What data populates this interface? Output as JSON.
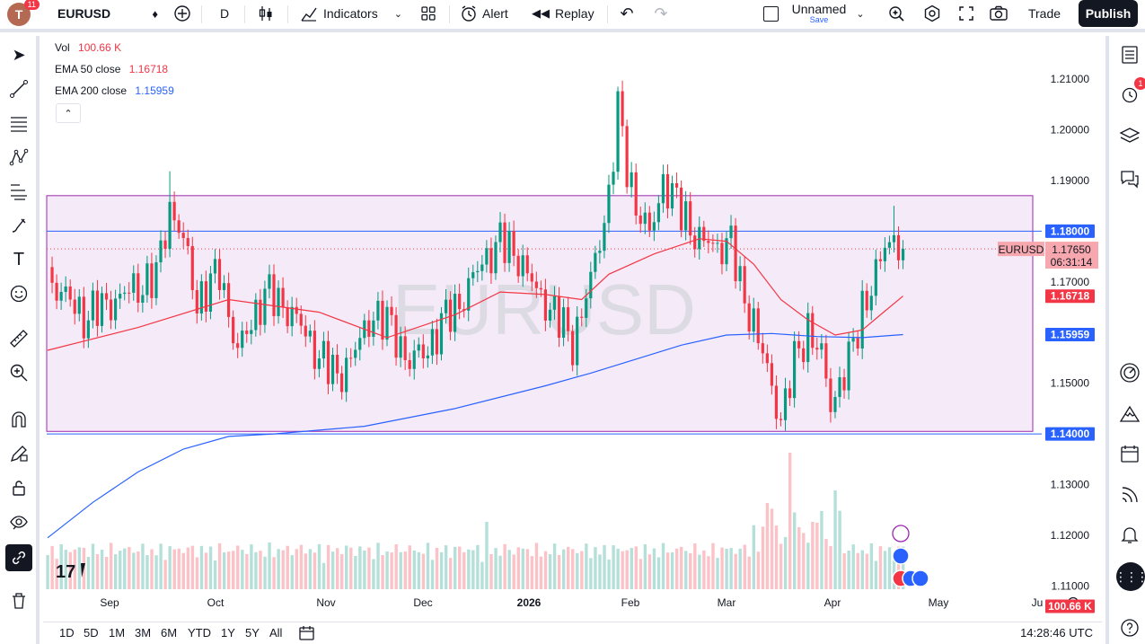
{
  "topbar": {
    "avatar_letter": "T",
    "avatar_badge": "11",
    "symbol": "EURUSD",
    "interval": "D",
    "indicators_label": "Indicators",
    "alert_label": "Alert",
    "replay_label": "Replay",
    "layout_name": "Unnamed",
    "save_label": "Save",
    "trade_label": "Trade",
    "publish_label": "Publish"
  },
  "legend": {
    "vol_label": "Vol",
    "vol_value": "100.66 K",
    "ema50_label": "EMA 50 close",
    "ema50_value": "1.16718",
    "ema200_label": "EMA 200 close",
    "ema200_value": "1.15959"
  },
  "colors": {
    "up": "#089981",
    "down": "#f23645",
    "ema50": "#f23645",
    "ema200": "#2962ff",
    "rect_border": "#9c27b0",
    "rect_fill": "#f3e5f5",
    "hline": "#2962ff",
    "watermark": "#d1d4dc"
  },
  "watermark": "EURUSD",
  "price_axis": {
    "ticks": [
      "1.21000",
      "1.20000",
      "1.19000",
      "1.17000",
      "1.15000",
      "1.13000",
      "1.12000",
      "1.11000"
    ],
    "labels": {
      "hline_upper": "1.18000",
      "hline_lower": "1.14000",
      "symbol": "EURUSD",
      "last_price": "1.17650",
      "countdown": "06:31:14",
      "ema50": "1.16718",
      "ema200": "1.15959",
      "volume": "100.66 K"
    }
  },
  "time_axis": {
    "labels": [
      "Sep",
      "Oct",
      "Nov",
      "Dec",
      "2026",
      "Feb",
      "Mar",
      "Apr",
      "May",
      "Ju"
    ]
  },
  "bottombar": {
    "ranges": [
      "1D",
      "5D",
      "1M",
      "3M",
      "6M",
      "YTD",
      "1Y",
      "5Y",
      "All"
    ],
    "clock": "14:28:46 UTC"
  },
  "right_toolbar": {
    "alerts_badge": "1"
  },
  "chart_data": {
    "type": "candlestick",
    "symbol": "EURUSD",
    "interval": "D",
    "ylim": [
      1.108,
      1.213
    ],
    "hlines": [
      1.18,
      1.14
    ],
    "rectangle": {
      "top": 1.187,
      "bottom": 1.1405
    },
    "last": {
      "price": 1.1765
    },
    "anchors": [
      [
        0,
        1.171
      ],
      [
        8,
        1.163
      ],
      [
        18,
        1.168
      ],
      [
        24,
        1.171
      ],
      [
        27,
        1.185
      ],
      [
        30,
        1.178
      ],
      [
        33,
        1.166
      ],
      [
        38,
        1.172
      ],
      [
        42,
        1.156
      ],
      [
        48,
        1.168
      ],
      [
        54,
        1.164
      ],
      [
        58,
        1.158
      ],
      [
        64,
        1.151
      ],
      [
        69,
        1.158
      ],
      [
        72,
        1.164
      ],
      [
        76,
        1.161
      ],
      [
        80,
        1.154
      ],
      [
        84,
        1.157
      ],
      [
        88,
        1.163
      ],
      [
        92,
        1.167
      ],
      [
        96,
        1.174
      ],
      [
        100,
        1.178
      ],
      [
        104,
        1.175
      ],
      [
        108,
        1.168
      ],
      [
        112,
        1.164
      ],
      [
        116,
        1.158
      ],
      [
        120,
        1.17
      ],
      [
        124,
        1.187
      ],
      [
        126,
        1.204
      ],
      [
        128,
        1.193
      ],
      [
        130,
        1.185
      ],
      [
        133,
        1.179
      ],
      [
        136,
        1.19
      ],
      [
        140,
        1.184
      ],
      [
        144,
        1.178
      ],
      [
        148,
        1.177
      ],
      [
        151,
        1.178
      ],
      [
        153,
        1.169
      ],
      [
        156,
        1.162
      ],
      [
        160,
        1.149
      ],
      [
        162,
        1.143
      ],
      [
        165,
        1.154
      ],
      [
        168,
        1.161
      ],
      [
        171,
        1.155
      ],
      [
        173,
        1.146
      ],
      [
        176,
        1.152
      ],
      [
        178,
        1.157
      ],
      [
        180,
        1.165
      ],
      [
        183,
        1.171
      ],
      [
        185,
        1.177
      ],
      [
        187,
        1.179
      ],
      [
        189,
        1.1765
      ]
    ],
    "ema50_points": [
      [
        0,
        1.1565
      ],
      [
        20,
        1.161
      ],
      [
        40,
        1.1665
      ],
      [
        60,
        1.164
      ],
      [
        75,
        1.159
      ],
      [
        90,
        1.1635
      ],
      [
        100,
        1.168
      ],
      [
        110,
        1.1675
      ],
      [
        118,
        1.1665
      ],
      [
        124,
        1.1715
      ],
      [
        134,
        1.1755
      ],
      [
        144,
        1.1785
      ],
      [
        150,
        1.178
      ],
      [
        156,
        1.1735
      ],
      [
        162,
        1.1665
      ],
      [
        168,
        1.1625
      ],
      [
        174,
        1.1595
      ],
      [
        180,
        1.1605
      ],
      [
        184,
        1.1635
      ],
      [
        189,
        1.1672
      ]
    ],
    "ema200_points": [
      [
        0,
        1.1195
      ],
      [
        10,
        1.1265
      ],
      [
        20,
        1.1325
      ],
      [
        30,
        1.137
      ],
      [
        40,
        1.1395
      ],
      [
        50,
        1.14
      ],
      [
        70,
        1.1415
      ],
      [
        90,
        1.145
      ],
      [
        110,
        1.1495
      ],
      [
        120,
        1.152
      ],
      [
        140,
        1.1575
      ],
      [
        150,
        1.1595
      ],
      [
        160,
        1.1598
      ],
      [
        170,
        1.1592
      ],
      [
        180,
        1.159
      ],
      [
        189,
        1.1596
      ]
    ]
  }
}
